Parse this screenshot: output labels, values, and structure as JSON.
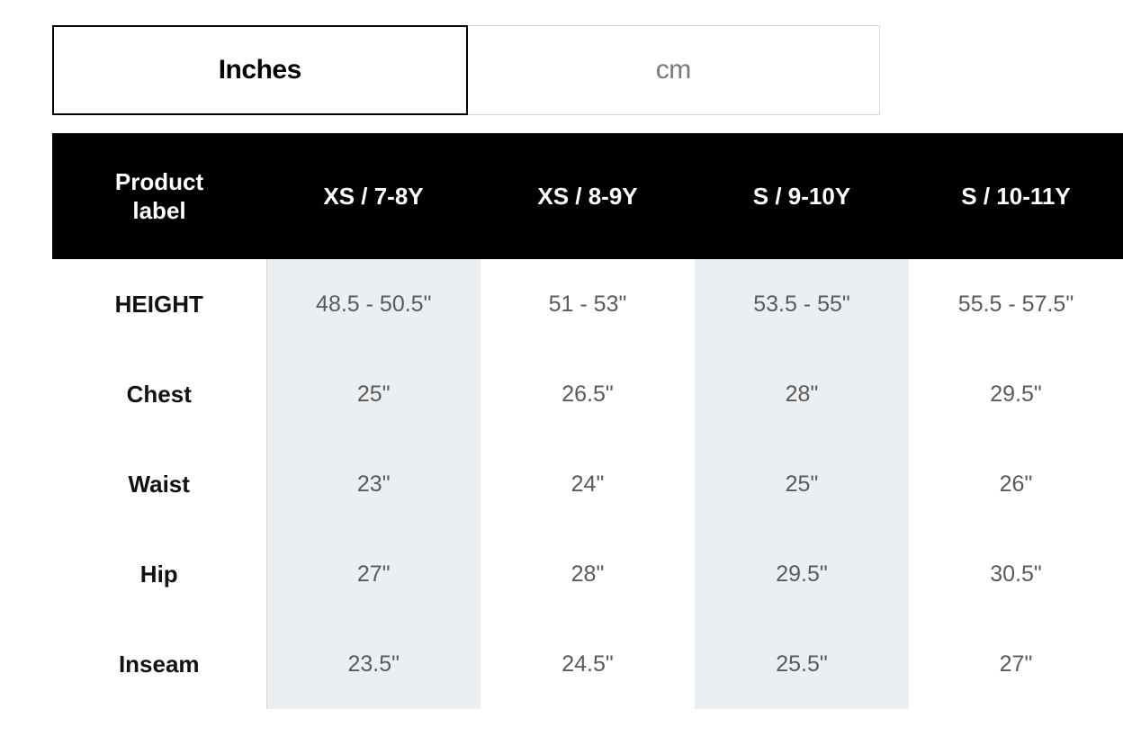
{
  "tabs": {
    "active_index": 0,
    "items": [
      {
        "label": "Inches"
      },
      {
        "label": "cm"
      }
    ]
  },
  "table": {
    "corner_label_line1": "Product",
    "corner_label_line2": "label",
    "columns": [
      {
        "label": "XS / 7-8Y",
        "striped": true
      },
      {
        "label": "XS / 8-9Y",
        "striped": false
      },
      {
        "label": "S / 9-10Y",
        "striped": true
      },
      {
        "label": "S / 10-11Y",
        "striped": false
      }
    ],
    "rows": [
      {
        "label": "HEIGHT",
        "values": [
          "48.5 - 50.5\"",
          "51 - 53\"",
          "53.5 - 55\"",
          "55.5 - 57.5\""
        ]
      },
      {
        "label": "Chest",
        "values": [
          "25\"",
          "26.5\"",
          "28\"",
          "29.5\""
        ]
      },
      {
        "label": "Waist",
        "values": [
          "23\"",
          "24\"",
          "25\"",
          "26\""
        ]
      },
      {
        "label": "Hip",
        "values": [
          "27\"",
          "28\"",
          "29.5\"",
          "30.5\""
        ]
      },
      {
        "label": "Inseam",
        "values": [
          "23.5\"",
          "24.5\"",
          "25.5\"",
          "27\""
        ]
      }
    ]
  },
  "colors": {
    "black": "#000000",
    "white": "#ffffff",
    "stripe": "#eceff1",
    "border_light": "#d9d9d9",
    "inactive_text": "#7a7a7a",
    "body_text": "#5a5a5a"
  }
}
